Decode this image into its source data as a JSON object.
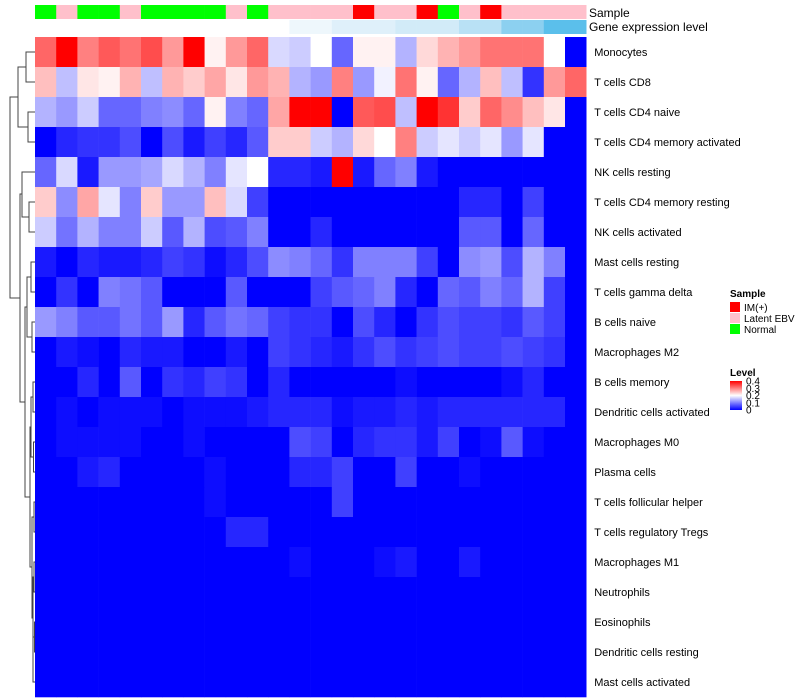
{
  "chart_data": {
    "type": "heatmap",
    "title": "",
    "columns": 26,
    "sample_track": {
      "label": "Sample",
      "values": [
        "Normal",
        "Latent EBV",
        "Normal",
        "Normal",
        "Latent EBV",
        "Normal",
        "Normal",
        "Normal",
        "Normal",
        "Latent EBV",
        "Normal",
        "Latent EBV",
        "Latent EBV",
        "Latent EBV",
        "Latent EBV",
        "IM(+)",
        "Latent EBV",
        "Latent EBV",
        "IM(+)",
        "Normal",
        "Latent EBV",
        "IM(+)",
        "Latent EBV",
        "Latent EBV",
        "Latent EBV",
        "Latent EBV"
      ]
    },
    "gene_track": {
      "label": "Gene expression level",
      "values": [
        0,
        0,
        0,
        0,
        0,
        0,
        0,
        0,
        0,
        0,
        0,
        0,
        1,
        1,
        2,
        2,
        2,
        3,
        3,
        3,
        4,
        4,
        5,
        5,
        6,
        6
      ]
    },
    "rows": [
      "Monocytes",
      "T cells CD8",
      "T cells CD4 naive",
      "T cells CD4 memory activated",
      "NK cells resting",
      "T cells CD4 memory resting",
      "NK cells activated",
      "Mast cells resting",
      "T cells gamma delta",
      "B cells naive",
      "Macrophages M2",
      "B cells memory",
      "Dendritic cells activated",
      "Macrophages M0",
      "Plasma cells",
      "T cells follicular helper",
      "T cells regulatory  Tregs",
      "Macrophages M1",
      "Neutrophils",
      "Eosinophils",
      "Dendritic cells resting",
      "Mast cells activated"
    ],
    "matrix": [
      [
        0.32,
        0.4,
        0.3,
        0.33,
        0.31,
        0.34,
        0.28,
        0.4,
        0.21,
        0.28,
        0.32,
        0.17,
        0.16,
        0.2,
        0.08,
        0.21,
        0.21,
        0.14,
        0.23,
        0.26,
        0.28,
        0.31,
        0.31,
        0.31,
        0.2,
        0.0
      ],
      [
        0.25,
        0.15,
        0.22,
        0.21,
        0.26,
        0.15,
        0.26,
        0.24,
        0.27,
        0.22,
        0.28,
        0.26,
        0.14,
        0.12,
        0.3,
        0.12,
        0.19,
        0.31,
        0.21,
        0.08,
        0.14,
        0.25,
        0.15,
        0.04,
        0.28,
        0.32
      ],
      [
        0.14,
        0.12,
        0.16,
        0.08,
        0.08,
        0.1,
        0.11,
        0.08,
        0.21,
        0.1,
        0.08,
        0.27,
        0.4,
        0.4,
        0.0,
        0.33,
        0.34,
        0.15,
        0.4,
        0.36,
        0.24,
        0.32,
        0.29,
        0.25,
        0.22,
        0.0
      ],
      [
        0.0,
        0.03,
        0.04,
        0.04,
        0.06,
        0.0,
        0.06,
        0.02,
        0.05,
        0.03,
        0.07,
        0.24,
        0.24,
        0.16,
        0.14,
        0.23,
        0.2,
        0.3,
        0.16,
        0.18,
        0.16,
        0.18,
        0.12,
        0.18,
        0.0,
        0.0
      ],
      [
        0.08,
        0.17,
        0.02,
        0.12,
        0.12,
        0.13,
        0.17,
        0.14,
        0.1,
        0.18,
        0.2,
        0.03,
        0.03,
        0.02,
        0.4,
        0.02,
        0.08,
        0.1,
        0.02,
        0.0,
        0.0,
        0.0,
        0.0,
        0.0,
        0.0,
        0.0
      ],
      [
        0.24,
        0.11,
        0.27,
        0.18,
        0.1,
        0.24,
        0.12,
        0.12,
        0.25,
        0.17,
        0.05,
        0.0,
        0.0,
        0.0,
        0.0,
        0.0,
        0.0,
        0.0,
        0.0,
        0.0,
        0.03,
        0.03,
        0.0,
        0.05,
        0.0,
        0.0
      ],
      [
        0.16,
        0.09,
        0.14,
        0.1,
        0.1,
        0.16,
        0.07,
        0.14,
        0.06,
        0.07,
        0.1,
        0.0,
        0.0,
        0.03,
        0.0,
        0.0,
        0.0,
        0.0,
        0.0,
        0.0,
        0.07,
        0.07,
        0.0,
        0.08,
        0.0,
        0.0
      ],
      [
        0.02,
        0.0,
        0.03,
        0.02,
        0.02,
        0.03,
        0.05,
        0.04,
        0.01,
        0.03,
        0.06,
        0.11,
        0.1,
        0.08,
        0.04,
        0.1,
        0.1,
        0.1,
        0.05,
        0.0,
        0.11,
        0.12,
        0.06,
        0.14,
        0.1,
        0.0
      ],
      [
        0.0,
        0.04,
        0.0,
        0.1,
        0.09,
        0.07,
        0.0,
        0.0,
        0.0,
        0.07,
        0.0,
        0.0,
        0.0,
        0.05,
        0.07,
        0.08,
        0.1,
        0.03,
        0.0,
        0.08,
        0.07,
        0.1,
        0.08,
        0.14,
        0.05,
        0.0
      ],
      [
        0.12,
        0.1,
        0.07,
        0.07,
        0.09,
        0.07,
        0.12,
        0.03,
        0.07,
        0.09,
        0.08,
        0.05,
        0.04,
        0.04,
        0.0,
        0.06,
        0.03,
        0.0,
        0.04,
        0.06,
        0.05,
        0.05,
        0.04,
        0.07,
        0.05,
        0.0
      ],
      [
        0.0,
        0.02,
        0.01,
        0.0,
        0.03,
        0.02,
        0.02,
        0.0,
        0.0,
        0.02,
        0.0,
        0.05,
        0.04,
        0.03,
        0.02,
        0.04,
        0.06,
        0.04,
        0.05,
        0.06,
        0.05,
        0.05,
        0.06,
        0.05,
        0.04,
        0.0
      ],
      [
        0.0,
        0.0,
        0.03,
        0.0,
        0.07,
        0.0,
        0.04,
        0.03,
        0.05,
        0.04,
        0.0,
        0.03,
        0.0,
        0.0,
        0.0,
        0.0,
        0.0,
        0.01,
        0.0,
        0.0,
        0.0,
        0.0,
        0.01,
        0.03,
        0.0,
        0.0
      ],
      [
        0.0,
        0.01,
        0.0,
        0.01,
        0.01,
        0.01,
        0.0,
        0.01,
        0.01,
        0.01,
        0.02,
        0.03,
        0.03,
        0.03,
        0.01,
        0.02,
        0.02,
        0.03,
        0.02,
        0.03,
        0.03,
        0.03,
        0.03,
        0.03,
        0.03,
        0.0
      ],
      [
        0.0,
        0.01,
        0.01,
        0.01,
        0.01,
        0.0,
        0.0,
        0.01,
        0.0,
        0.0,
        0.0,
        0.0,
        0.06,
        0.05,
        0.0,
        0.03,
        0.04,
        0.04,
        0.02,
        0.05,
        0.0,
        0.01,
        0.07,
        0.01,
        0.0,
        0.0
      ],
      [
        0.0,
        0.0,
        0.02,
        0.03,
        0.0,
        0.0,
        0.0,
        0.0,
        0.01,
        0.0,
        0.0,
        0.0,
        0.03,
        0.03,
        0.05,
        0.0,
        0.0,
        0.05,
        0.0,
        0.0,
        0.01,
        0.0,
        0.0,
        0.0,
        0.0,
        0.0
      ],
      [
        0.0,
        0.0,
        0.0,
        0.0,
        0.0,
        0.0,
        0.0,
        0.0,
        0.01,
        0.0,
        0.0,
        0.0,
        0.0,
        0.0,
        0.05,
        0.0,
        0.0,
        0.0,
        0.0,
        0.0,
        0.0,
        0.0,
        0.0,
        0.0,
        0.0,
        0.0
      ],
      [
        0.0,
        0.0,
        0.0,
        0.0,
        0.0,
        0.0,
        0.0,
        0.0,
        0.0,
        0.03,
        0.03,
        0.0,
        0.0,
        0.0,
        0.0,
        0.0,
        0.0,
        0.0,
        0.0,
        0.0,
        0.0,
        0.0,
        0.0,
        0.0,
        0.0,
        0.0
      ],
      [
        0.0,
        0.0,
        0.0,
        0.0,
        0.0,
        0.0,
        0.0,
        0.0,
        0.0,
        0.0,
        0.0,
        0.0,
        0.01,
        0.0,
        0.0,
        0.0,
        0.01,
        0.02,
        0.0,
        0.0,
        0.02,
        0.0,
        0.0,
        0.0,
        0.0,
        0.0
      ],
      [
        0.0,
        0.0,
        0.0,
        0.0,
        0.0,
        0.0,
        0.0,
        0.0,
        0.0,
        0.0,
        0.0,
        0.0,
        0.0,
        0.0,
        0.0,
        0.0,
        0.0,
        0.0,
        0.0,
        0.0,
        0.0,
        0.0,
        0.0,
        0.0,
        0.0,
        0.0
      ],
      [
        0.0,
        0.0,
        0.0,
        0.0,
        0.0,
        0.0,
        0.0,
        0.0,
        0.0,
        0.0,
        0.0,
        0.0,
        0.0,
        0.0,
        0.0,
        0.0,
        0.0,
        0.0,
        0.0,
        0.0,
        0.0,
        0.0,
        0.0,
        0.0,
        0.0,
        0.0
      ],
      [
        0.0,
        0.0,
        0.0,
        0.0,
        0.0,
        0.0,
        0.0,
        0.0,
        0.0,
        0.0,
        0.0,
        0.0,
        0.0,
        0.0,
        0.0,
        0.0,
        0.0,
        0.0,
        0.0,
        0.0,
        0.0,
        0.0,
        0.0,
        0.0,
        0.0,
        0.0
      ],
      [
        0.0,
        0.0,
        0.0,
        0.0,
        0.0,
        0.0,
        0.0,
        0.0,
        0.0,
        0.0,
        0.0,
        0.0,
        0.0,
        0.0,
        0.0,
        0.0,
        0.0,
        0.0,
        0.0,
        0.0,
        0.0,
        0.0,
        0.0,
        0.0,
        0.0,
        0.0
      ]
    ],
    "color_scale": {
      "min": 0,
      "max": 0.4,
      "low_color": "#0000ff",
      "mid_color": "#ffffff",
      "high_color": "#ff0000"
    },
    "gene_track_colors": [
      "#ffffff",
      "#eef7fc",
      "#dff0fa",
      "#d2ebf8",
      "#b9e1f5",
      "#8cd0f0",
      "#5bbfeb"
    ],
    "legend": {
      "sample_title": "Sample",
      "sample_entries": [
        {
          "label": "IM(+)",
          "color": "#ff0000"
        },
        {
          "label": "Latent EBV",
          "color": "#ffc0cb"
        },
        {
          "label": "Normal",
          "color": "#00ff00"
        }
      ],
      "level_title": "Level",
      "level_ticks": [
        "0.4",
        "0.3",
        "0.2",
        "0.1",
        "0"
      ],
      "level_tick_values": [
        0.4,
        0.3,
        0.2,
        0.1,
        0
      ],
      "placement": "right"
    }
  }
}
